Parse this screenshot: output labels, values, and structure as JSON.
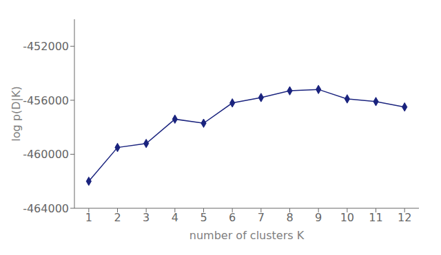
{
  "chart_data": {
    "type": "line",
    "x": [
      1,
      2,
      3,
      4,
      5,
      6,
      7,
      8,
      9,
      10,
      11,
      12
    ],
    "values": [
      -462000,
      -459500,
      -459200,
      -457400,
      -457700,
      -456200,
      -455800,
      -455300,
      -455200,
      -455900,
      -456100,
      -456500
    ],
    "xlabel": "number of clusters K",
    "ylabel": "log p(D|K)",
    "xlim": [
      0.5,
      12.5
    ],
    "ylim": [
      -464000,
      -450000
    ],
    "xticks": [
      1,
      2,
      3,
      4,
      5,
      6,
      7,
      8,
      9,
      10,
      11,
      12
    ],
    "yticks": [
      -464000,
      -460000,
      -456000,
      -452000
    ],
    "color": "#1a237e",
    "marker": "diamond",
    "grid": false
  }
}
